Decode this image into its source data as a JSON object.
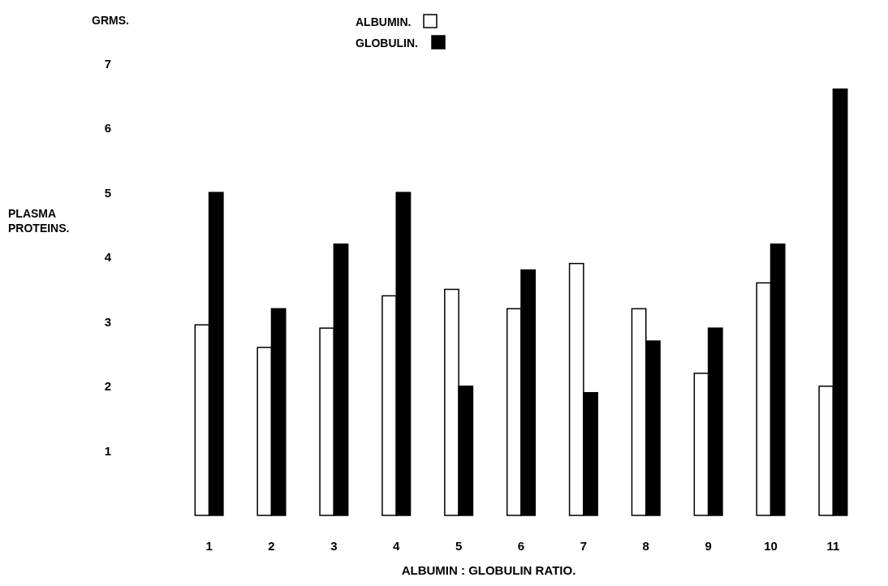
{
  "chart_data": {
    "type": "bar",
    "xlabel": "ALBUMIN : GLOBULIN RATIO.",
    "ylabel": "PLASMA PROTEINS.",
    "annotations": [
      "GRMS."
    ],
    "categories": [
      "1",
      "2",
      "3",
      "4",
      "5",
      "6",
      "7",
      "8",
      "9",
      "10",
      "11"
    ],
    "series": [
      {
        "name": "ALBUMIN.",
        "color": "#ffffff",
        "values": [
          2.95,
          2.6,
          2.9,
          3.4,
          3.5,
          3.2,
          3.9,
          3.2,
          2.2,
          3.6,
          2.0
        ]
      },
      {
        "name": "GLOBULIN.",
        "color": "#000000",
        "values": [
          5.0,
          3.2,
          4.2,
          5.0,
          2.0,
          3.8,
          1.9,
          2.7,
          2.9,
          4.2,
          6.6
        ]
      }
    ],
    "ylim": [
      0,
      7
    ],
    "yticks": [
      1,
      2,
      3,
      4,
      5,
      6,
      7
    ],
    "legend": "top",
    "grid": false
  }
}
